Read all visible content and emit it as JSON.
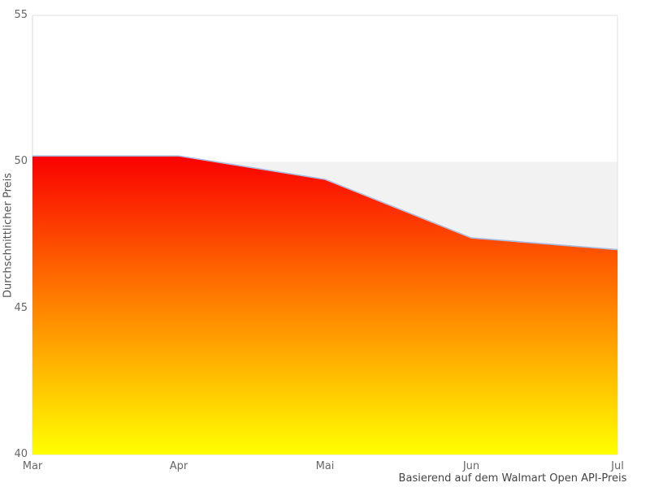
{
  "chart_data": {
    "type": "area",
    "categories": [
      "Mar",
      "Apr",
      "Mai",
      "Jun",
      "Jul"
    ],
    "values": [
      50.2,
      50.2,
      49.4,
      47.4,
      47.0
    ],
    "title": "",
    "xlabel": "",
    "ylabel": "Durchschnittlicher Preis",
    "caption": "Basierend auf dem Walmart Open API-Preis",
    "ylim": [
      40,
      55
    ],
    "yticks": [
      "55",
      "50",
      "45",
      "40"
    ],
    "grid": false,
    "legend": "none",
    "reference_band": {
      "from": 40,
      "to": 50,
      "color": "#f2f2f2"
    },
    "line_color": "#a6bde0",
    "area_gradient": [
      "#fa0000",
      "#ff8200",
      "#ffff00"
    ],
    "axis_line_color": "#d8d8d8",
    "border_color": "#e2e2e2",
    "tick_label_color": "#666666"
  }
}
